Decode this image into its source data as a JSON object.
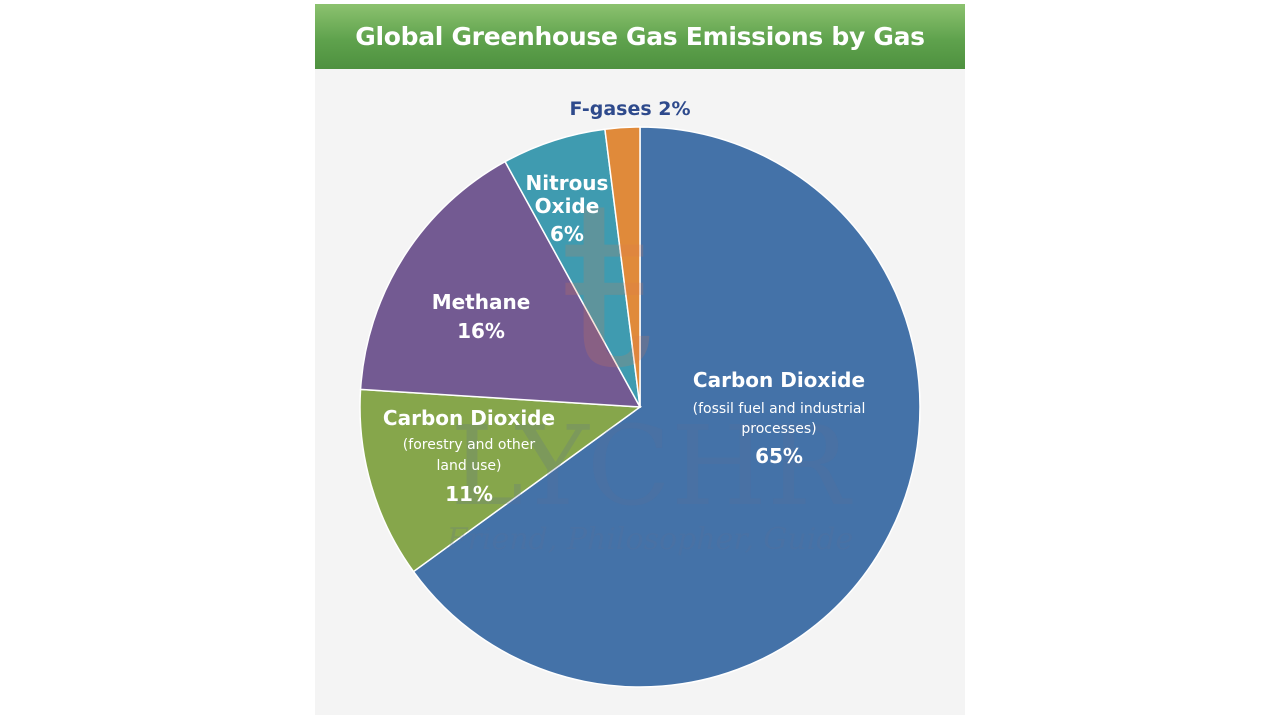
{
  "chart_data": {
    "type": "pie",
    "title": "Global Greenhouse Gas Emissions by Gas",
    "slices": [
      {
        "name": "Carbon Dioxide",
        "subtitle": "(fossil fuel and industrial processes)",
        "value": 65,
        "label": "65%",
        "color": "#4472a8"
      },
      {
        "name": "Carbon Dioxide",
        "subtitle": "(forestry and other land use)",
        "value": 11,
        "label": "11%",
        "color": "#86a64b"
      },
      {
        "name": "Methane",
        "subtitle": "",
        "value": 16,
        "label": "16%",
        "color": "#735a92"
      },
      {
        "name": "Nitrous Oxide",
        "subtitle": "",
        "value": 6,
        "label": "6%",
        "color": "#3f9bb0"
      },
      {
        "name": "F-gases",
        "subtitle": "",
        "value": 2,
        "label": "2%",
        "color": "#e08a3a"
      }
    ]
  },
  "labels": {
    "co2_fossil": {
      "line1": "Carbon Dioxide",
      "line2": "(fossil fuel and industrial",
      "line3": "processes)",
      "pct": "65%"
    },
    "co2_land": {
      "line1": "Carbon Dioxide",
      "line2": "(forestry and other",
      "line3": "land use)",
      "pct": "11%"
    },
    "methane": {
      "line1": "Methane",
      "pct": "16%"
    },
    "nitrous": {
      "line1": "Nitrous",
      "line2": "Oxide",
      "pct": "6%"
    },
    "fgases": {
      "text": "F-gases 2%"
    }
  },
  "watermark": {
    "brand": "LYCHR",
    "tagline": "Friend, Philosopher, Guide"
  }
}
